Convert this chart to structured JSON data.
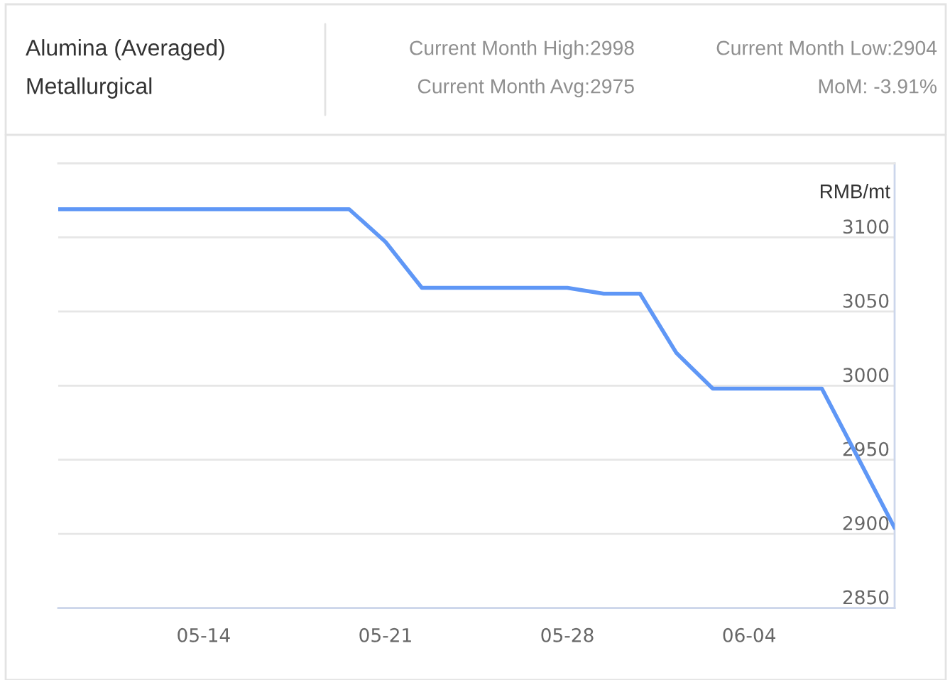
{
  "chart_data": {
    "type": "line",
    "title": "Alumina (Averaged)",
    "subtitle": "Metallurgical",
    "ylabel": "RMB/mt",
    "annotations": [
      "Current Month High:2998",
      "Current Month Low:2904",
      "Current Month Avg:2975",
      "MoM: -3.91%"
    ],
    "categories": [
      null,
      null,
      null,
      null,
      "05-14",
      null,
      null,
      null,
      null,
      "05-21",
      null,
      null,
      null,
      null,
      "05-28",
      null,
      null,
      null,
      null,
      "06-04",
      null,
      null,
      null,
      null
    ],
    "series": [
      {
        "color": "#5f97f6",
        "values": [
          3119,
          3119,
          3119,
          3119,
          3119,
          3119,
          3119,
          3119,
          3119,
          3097,
          3066,
          3066,
          3066,
          3066,
          3066,
          3062,
          3062,
          3022,
          2998,
          2998,
          2998,
          2998,
          2951,
          2904
        ]
      }
    ],
    "ylim": [
      2850,
      3150
    ],
    "yticks": [
      2850,
      2900,
      2950,
      3000,
      3050,
      3100
    ],
    "grid": "y"
  }
}
